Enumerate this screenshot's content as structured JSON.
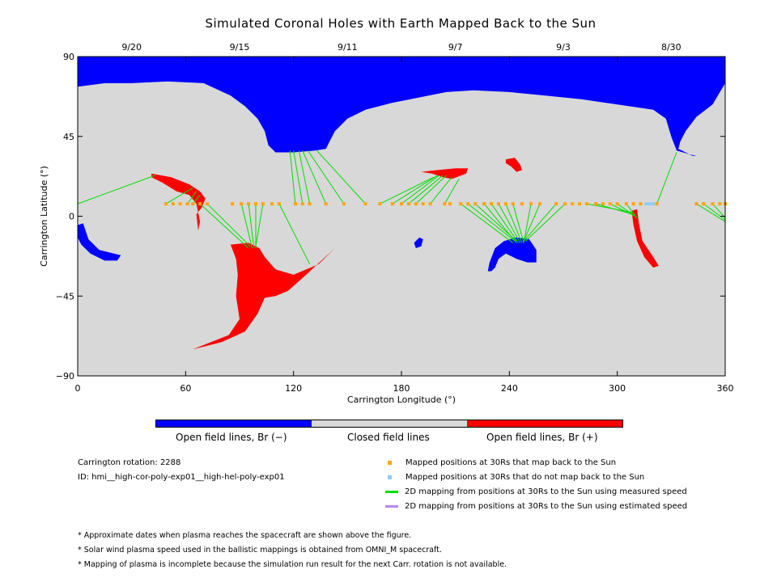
{
  "chart_data": {
    "type": "map",
    "title": "Simulated Coronal Holes with Earth Mapped Back to the Sun",
    "xlabel": "Carrington Longitude (°)",
    "ylabel": "Carrington Latitude (°)",
    "xlim": [
      0,
      360
    ],
    "ylim": [
      -90,
      90
    ],
    "x_ticks": [
      "0",
      "60",
      "120",
      "180",
      "240",
      "300",
      "360"
    ],
    "y_ticks": [
      "90",
      "45",
      "0",
      "-45",
      "-90"
    ],
    "top_axis_dates": [
      {
        "label": "9/20",
        "lon": 30
      },
      {
        "label": "9/15",
        "lon": 90
      },
      {
        "label": "9/11",
        "lon": 150
      },
      {
        "label": "9/7",
        "lon": 210
      },
      {
        "label": "9/3",
        "lon": 270
      },
      {
        "label": "8/30",
        "lon": 330
      }
    ],
    "colors": {
      "closed": "#d8d8d8",
      "open_negative": "#0000ff",
      "open_positive": "#ff0000",
      "mapped": "#ffa500",
      "not_mapped": "#87cefa",
      "measured": "#00dd00",
      "estimated": "#bb88ee"
    },
    "earth_latitude": 7,
    "mapped_positions_lon": [
      49,
      53,
      57,
      61,
      64,
      68,
      72,
      86,
      91,
      95,
      99,
      103,
      108,
      112,
      121,
      125,
      129,
      138,
      148,
      160,
      168,
      175,
      180,
      184,
      188,
      192,
      196,
      204,
      207,
      213,
      217,
      221,
      226,
      230,
      234,
      238,
      242,
      247,
      252,
      257,
      266,
      271,
      275,
      279,
      283,
      288,
      292,
      296,
      300,
      305,
      309,
      313,
      322,
      344,
      348,
      353,
      357,
      360
    ],
    "not_mapped_positions_lon": [
      316,
      318,
      320
    ],
    "mappings": [
      {
        "from_lon": 0,
        "to_lon": 43,
        "to_lat": 23
      },
      {
        "from_lon": 49,
        "to_lon": 64,
        "to_lat": 16
      },
      {
        "from_lon": 61,
        "to_lon": 66,
        "to_lat": 14
      },
      {
        "from_lon": 64,
        "to_lon": 68,
        "to_lat": 12
      },
      {
        "from_lon": 68,
        "to_lon": 95,
        "to_lat": -18
      },
      {
        "from_lon": 72,
        "to_lon": 96,
        "to_lat": -17
      },
      {
        "from_lon": 91,
        "to_lon": 97,
        "to_lat": -18
      },
      {
        "from_lon": 95,
        "to_lon": 98,
        "to_lat": -18
      },
      {
        "from_lon": 99,
        "to_lon": 99,
        "to_lat": -18
      },
      {
        "from_lon": 103,
        "to_lon": 99,
        "to_lat": -17
      },
      {
        "from_lon": 112,
        "to_lon": 129,
        "to_lat": -27
      },
      {
        "from_lon": 121,
        "to_lon": 118,
        "to_lat": 37
      },
      {
        "from_lon": 125,
        "to_lon": 120,
        "to_lat": 37
      },
      {
        "from_lon": 129,
        "to_lon": 123,
        "to_lat": 37
      },
      {
        "from_lon": 138,
        "to_lon": 125,
        "to_lat": 37
      },
      {
        "from_lon": 148,
        "to_lon": 128,
        "to_lat": 37
      },
      {
        "from_lon": 160,
        "to_lon": 133,
        "to_lat": 37
      },
      {
        "from_lon": 168,
        "to_lon": 198,
        "to_lat": 22
      },
      {
        "from_lon": 175,
        "to_lon": 200,
        "to_lat": 23
      },
      {
        "from_lon": 180,
        "to_lon": 201,
        "to_lat": 23
      },
      {
        "from_lon": 184,
        "to_lon": 203,
        "to_lat": 23
      },
      {
        "from_lon": 188,
        "to_lon": 205,
        "to_lat": 23
      },
      {
        "from_lon": 196,
        "to_lon": 208,
        "to_lat": 22
      },
      {
        "from_lon": 204,
        "to_lon": 212,
        "to_lat": 21
      },
      {
        "from_lon": 213,
        "to_lon": 242,
        "to_lat": -15
      },
      {
        "from_lon": 217,
        "to_lon": 243,
        "to_lat": -14
      },
      {
        "from_lon": 221,
        "to_lon": 244,
        "to_lat": -14
      },
      {
        "from_lon": 226,
        "to_lon": 244,
        "to_lat": -15
      },
      {
        "from_lon": 230,
        "to_lon": 245,
        "to_lat": -15
      },
      {
        "from_lon": 234,
        "to_lon": 246,
        "to_lat": -15
      },
      {
        "from_lon": 238,
        "to_lon": 247,
        "to_lat": -15
      },
      {
        "from_lon": 242,
        "to_lon": 248,
        "to_lat": -15
      },
      {
        "from_lon": 252,
        "to_lon": 248,
        "to_lat": -15
      },
      {
        "from_lon": 257,
        "to_lon": 248,
        "to_lat": -14
      },
      {
        "from_lon": 266,
        "to_lon": 248,
        "to_lat": -14
      },
      {
        "from_lon": 271,
        "to_lon": 249,
        "to_lat": -14
      },
      {
        "from_lon": 283,
        "to_lon": 309,
        "to_lat": 2
      },
      {
        "from_lon": 288,
        "to_lon": 309,
        "to_lat": 1
      },
      {
        "from_lon": 296,
        "to_lon": 310,
        "to_lat": 0
      },
      {
        "from_lon": 300,
        "to_lon": 310,
        "to_lat": 0
      },
      {
        "from_lon": 305,
        "to_lon": 311,
        "to_lat": -1
      },
      {
        "from_lon": 322,
        "to_lon": 333,
        "to_lat": 36
      },
      {
        "from_lon": 344,
        "to_lon": 360,
        "to_lat": -3
      },
      {
        "from_lon": 348,
        "to_lon": 360,
        "to_lat": -2
      },
      {
        "from_lon": 353,
        "to_lon": 360,
        "to_lat": -1
      }
    ]
  },
  "colorbar": {
    "negative_label": "Open field lines, Br (−)",
    "closed_label": "Closed field lines",
    "positive_label": "Open field lines, Br (+)"
  },
  "info": {
    "rotation": "Carrington rotation: 2288",
    "id": "ID: hmi__high-cor-poly-exp01__high-hel-poly-exp01"
  },
  "key": {
    "mapped": "Mapped positions at 30Rs that map back to the Sun",
    "not_mapped": "Mapped positions at 30Rs that do not map back to the Sun",
    "measured": "2D mapping from positions at 30Rs to the Sun using measured speed",
    "estimated": "2D mapping from positions at 30Rs to the Sun using estimated speed"
  },
  "notes": [
    "* Approximate dates when plasma reaches the spacecraft are shown above the figure.",
    "* Solar wind plasma speed used in the ballistic mappings is obtained from OMNI_M spacecraft.",
    "* Mapping of plasma is incomplete because the simulation run result for the next Carr. rotation is not available."
  ]
}
